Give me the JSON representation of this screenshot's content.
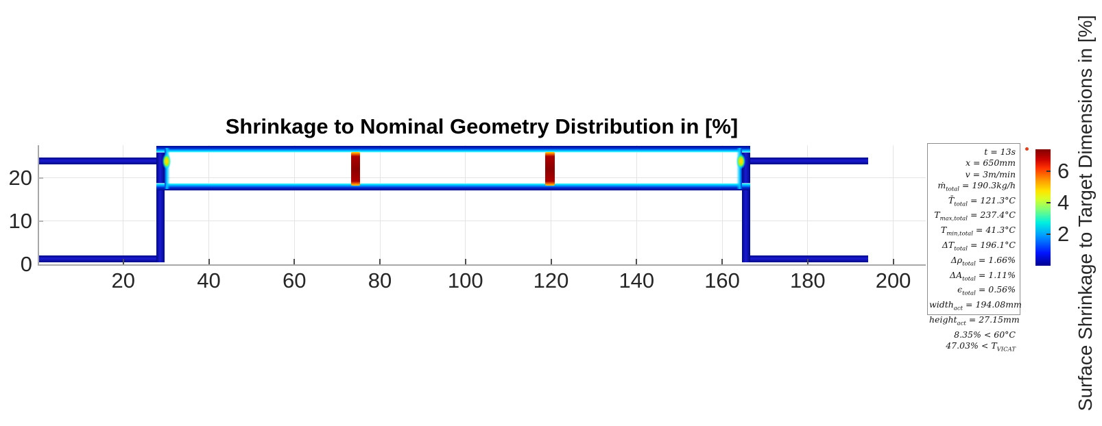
{
  "chart_data": {
    "type": "heatmap",
    "description": "Cross-section profile outline of an extruded plastic part; line color encodes local surface shrinkage percentage (jet colormap).",
    "title": "Shrinkage to Nominal Geometry Distribution in [%]",
    "xlabel": "",
    "ylabel": "",
    "xlim": [
      0,
      207.6
    ],
    "ylim": [
      0,
      27.6
    ],
    "x_ticks": [
      20,
      40,
      60,
      80,
      100,
      120,
      140,
      160,
      180,
      200
    ],
    "y_ticks": [
      0,
      10,
      20
    ],
    "grid": "on",
    "value_unit": "%",
    "colorbar": {
      "label": "Surface Shrinkage to Target Dimensions in [%]",
      "ticks": [
        2,
        4,
        6
      ],
      "range": [
        0,
        7.4
      ],
      "colormap": "jet"
    },
    "geometry": [
      {
        "name": "left-top-flange",
        "x": 0,
        "y": 23.2,
        "w": 29.6,
        "h": 1.6,
        "paint": "band",
        "value_pct": 0.7
      },
      {
        "name": "left-bottom-flange",
        "x": 0,
        "y": 0.5,
        "w": 29.6,
        "h": 1.6,
        "paint": "band",
        "value_pct": 0.7
      },
      {
        "name": "right-top-flange",
        "x": 164.6,
        "y": 23.2,
        "w": 29.5,
        "h": 1.6,
        "paint": "band",
        "value_pct": 0.7
      },
      {
        "name": "right-bottom-flange",
        "x": 164.6,
        "y": 0.5,
        "w": 29.5,
        "h": 1.6,
        "paint": "band",
        "value_pct": 0.7
      },
      {
        "name": "left-web",
        "x": 27.7,
        "y": 0.5,
        "w": 1.9,
        "h": 27.0,
        "paint": "stem",
        "value_pct": 0.9
      },
      {
        "name": "right-web",
        "x": 164.6,
        "y": 0.5,
        "w": 1.9,
        "h": 27.0,
        "paint": "stem",
        "value_pct": 0.9
      },
      {
        "name": "box-top-wall",
        "x": 27.7,
        "y": 25.8,
        "w": 138.8,
        "h": 1.7,
        "paint": "edge-top",
        "value_pct": 2.2
      },
      {
        "name": "box-bottom-wall",
        "x": 27.7,
        "y": 17.1,
        "w": 138.8,
        "h": 1.7,
        "paint": "edge-bottom",
        "value_pct": 2.2
      },
      {
        "name": "box-left-inner-wall",
        "x": 29.6,
        "y": 17.4,
        "w": 1.3,
        "h": 9.6,
        "paint": "fade-right",
        "value_pct": 2.6
      },
      {
        "name": "box-right-inner-wall",
        "x": 163.3,
        "y": 17.4,
        "w": 1.3,
        "h": 9.6,
        "paint": "fade-left",
        "value_pct": 2.6
      },
      {
        "name": "left-corner-hotspot",
        "x": 28.9,
        "y": 21.6,
        "w": 2.6,
        "h": 4.6,
        "paint": "hotspot",
        "value_pct": 4.6
      },
      {
        "name": "right-corner-hotspot",
        "x": 163.1,
        "y": 21.6,
        "w": 2.6,
        "h": 4.6,
        "paint": "hotspot",
        "value_pct": 4.6
      },
      {
        "name": "internal-rib-1",
        "x": 73.2,
        "y": 18.3,
        "w": 2.2,
        "h": 7.7,
        "paint": "rib",
        "value_pct": 7.2
      },
      {
        "name": "internal-rib-2",
        "x": 118.6,
        "y": 18.3,
        "w": 2.2,
        "h": 7.7,
        "paint": "rib",
        "value_pct": 7.2
      }
    ]
  },
  "stats_box": {
    "lines": [
      "t = 13s",
      "x = 650mm",
      "v = 3m/min",
      "ṁ_{total} = 190.3kg/h",
      "T̄_{total} = 121.3°C",
      "T_{max,total} = 237.4°C",
      "T_{min,total} = 41.3°C",
      "ΔT_{total} = 196.1°C",
      "Δρ_{total} = 1.66%",
      "ΔA_{total} = 1.11%",
      "ϵ_{total} = 0.56%",
      "width_{act} = 194.08mm",
      "height_{act} = 27.15mm",
      "8.35% < 60°C",
      "47.03% < T_{VICAT}"
    ]
  }
}
